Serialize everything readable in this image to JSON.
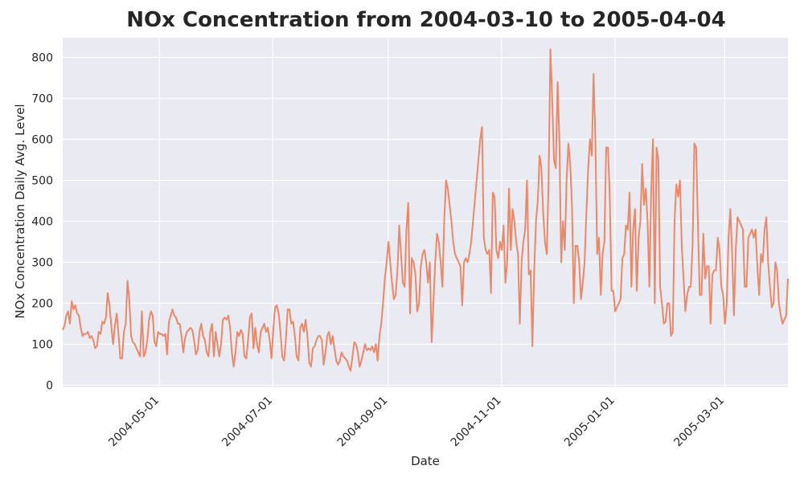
{
  "chart_data": {
    "type": "line",
    "title": "NOx Concentration from 2004-03-10 to 2005-04-04",
    "xlabel": "Date",
    "ylabel": "NOx Concentration Daily Avg. Level",
    "x_start": "2004-03-10",
    "x_end": "2005-04-04",
    "ylim": [
      -5,
      848
    ],
    "grid": true,
    "series_color": "#e8896a",
    "background_color": "#eaeaf2",
    "x_ticks": [
      "2004-05-01",
      "2004-07-01",
      "2004-09-01",
      "2004-11-01",
      "2005-01-01",
      "2005-03-01"
    ],
    "y_ticks": [
      0,
      100,
      200,
      300,
      400,
      500,
      600,
      700,
      800
    ],
    "series": [
      {
        "values": [
          135,
          145,
          170,
          180,
          150,
          205,
          185,
          195,
          175,
          170,
          140,
          120,
          125,
          125,
          130,
          115,
          120,
          110,
          90,
          95,
          130,
          125,
          155,
          150,
          165,
          225,
          195,
          145,
          100,
          145,
          175,
          125,
          65,
          65,
          130,
          150,
          255,
          210,
          120,
          105,
          100,
          90,
          80,
          70,
          180,
          70,
          80,
          110,
          160,
          180,
          170,
          105,
          95,
          130,
          125,
          125,
          120,
          125,
          75,
          155,
          170,
          185,
          170,
          165,
          150,
          150,
          120,
          80,
          115,
          130,
          135,
          140,
          135,
          110,
          75,
          85,
          130,
          150,
          120,
          110,
          80,
          70,
          130,
          150,
          70,
          130,
          100,
          70,
          100,
          160,
          165,
          160,
          170,
          140,
          80,
          45,
          80,
          130,
          120,
          135,
          125,
          70,
          65,
          110,
          165,
          175,
          90,
          140,
          100,
          80,
          130,
          140,
          150,
          130,
          140,
          110,
          65,
          135,
          190,
          195,
          175,
          130,
          70,
          60,
          110,
          185,
          185,
          150,
          155,
          120,
          70,
          60,
          140,
          150,
          130,
          160,
          120,
          55,
          45,
          90,
          95,
          110,
          120,
          120,
          110,
          50,
          80,
          120,
          130,
          100,
          120,
          90,
          60,
          50,
          60,
          80,
          70,
          65,
          60,
          45,
          35,
          70,
          105,
          100,
          80,
          45,
          60,
          80,
          100,
          85,
          90,
          85,
          95,
          80,
          100,
          60,
          120,
          150,
          200,
          260,
          300,
          350,
          300,
          250,
          210,
          220,
          280,
          390,
          320,
          250,
          240,
          380,
          445,
          175,
          310,
          300,
          270,
          180,
          200,
          290,
          320,
          330,
          300,
          250,
          300,
          105,
          200,
          300,
          370,
          350,
          300,
          240,
          400,
          500,
          480,
          440,
          400,
          350,
          320,
          310,
          300,
          290,
          195,
          300,
          310,
          300,
          320,
          350,
          400,
          450,
          500,
          550,
          600,
          630,
          360,
          330,
          320,
          330,
          225,
          470,
          460,
          330,
          310,
          350,
          330,
          390,
          250,
          300,
          480,
          330,
          430,
          400,
          350,
          320,
          150,
          300,
          350,
          380,
          500,
          270,
          280,
          95,
          280,
          400,
          450,
          560,
          530,
          420,
          350,
          320,
          500,
          820,
          700,
          550,
          530,
          740,
          600,
          300,
          400,
          330,
          500,
          590,
          540,
          440,
          200,
          340,
          340,
          300,
          210,
          250,
          300,
          420,
          530,
          600,
          560,
          760,
          600,
          320,
          360,
          220,
          320,
          350,
          580,
          580,
          460,
          230,
          230,
          180,
          190,
          200,
          210,
          310,
          320,
          390,
          380,
          470,
          240,
          380,
          430,
          230,
          360,
          400,
          540,
          440,
          480,
          400,
          240,
          470,
          600,
          200,
          580,
          550,
          240,
          200,
          150,
          155,
          200,
          200,
          120,
          130,
          400,
          490,
          460,
          500,
          340,
          260,
          180,
          220,
          240,
          240,
          340,
          590,
          580,
          390,
          220,
          220,
          370,
          260,
          290,
          290,
          150,
          270,
          280,
          280,
          360,
          330,
          240,
          220,
          150,
          200,
          360,
          430,
          320,
          170,
          330,
          410,
          400,
          390,
          380,
          240,
          240,
          360,
          370,
          380,
          360,
          380,
          290,
          220,
          320,
          300,
          380,
          410,
          300,
          240,
          190,
          200,
          300,
          280,
          200,
          170,
          150,
          160,
          170,
          260
        ]
      }
    ]
  }
}
